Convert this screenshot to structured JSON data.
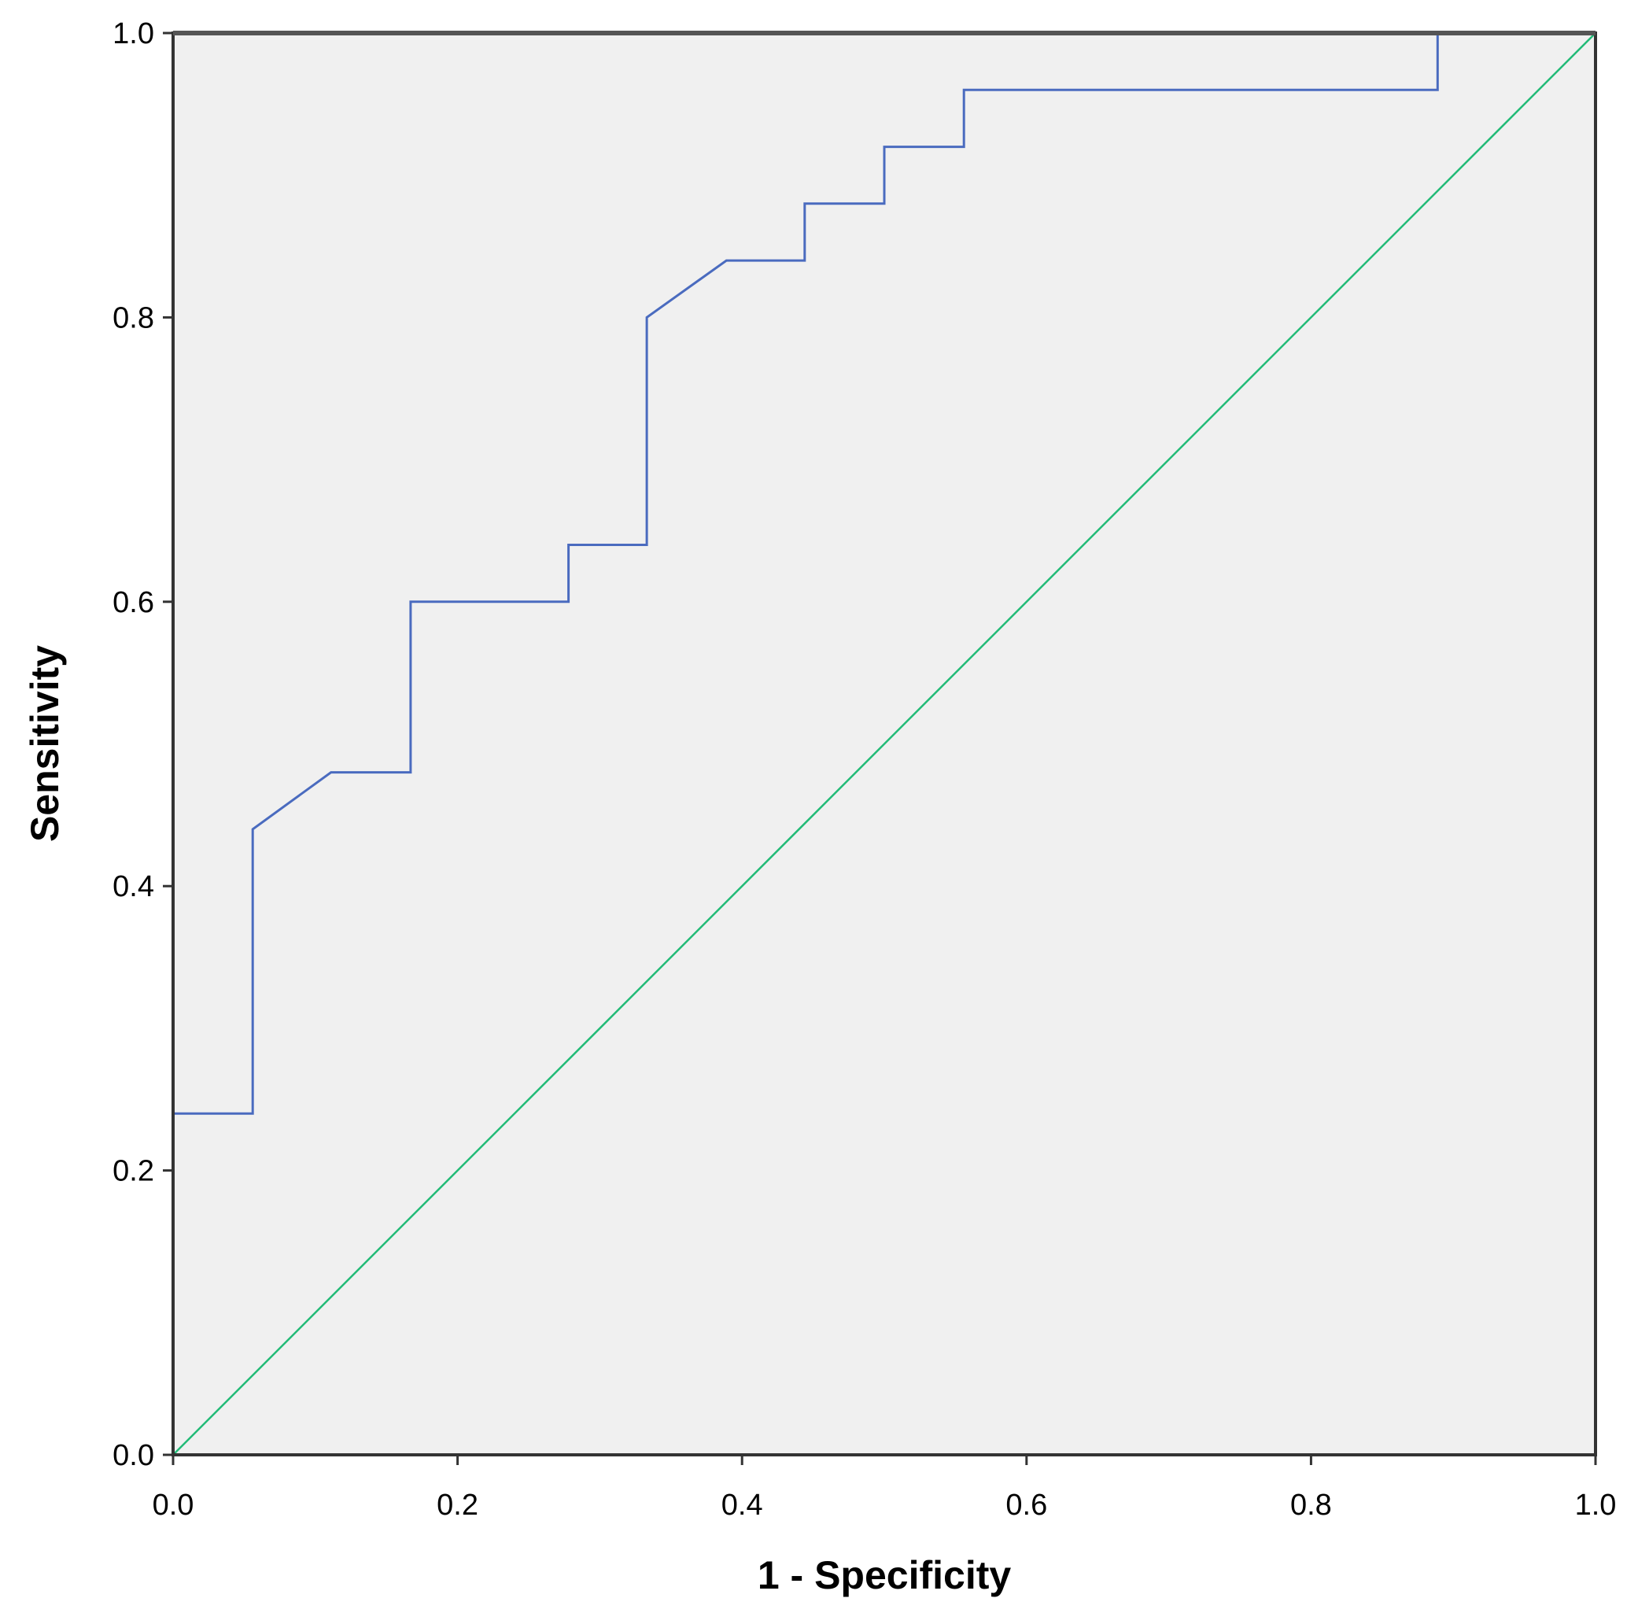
{
  "chart_data": {
    "type": "line",
    "title": "",
    "xlabel": "1 - Specificity",
    "ylabel": "Sensitivity",
    "xlim": [
      0,
      1
    ],
    "ylim": [
      0,
      1
    ],
    "x_ticks": [
      "0.0",
      "0.2",
      "0.4",
      "0.6",
      "0.8",
      "1.0"
    ],
    "y_ticks": [
      "0.0",
      "0.2",
      "0.4",
      "0.6",
      "0.8",
      "1.0"
    ],
    "grid": false,
    "legend": "none",
    "background_color": "#f0f0f0",
    "series": [
      {
        "color": "#4a6bbf",
        "x": [
          0.0,
          0.0,
          0.056,
          0.056,
          0.111,
          0.167,
          0.167,
          0.278,
          0.278,
          0.333,
          0.333,
          0.389,
          0.444,
          0.444,
          0.5,
          0.5,
          0.556,
          0.556,
          0.889,
          0.889,
          1.0
        ],
        "y": [
          0.0,
          0.24,
          0.24,
          0.44,
          0.48,
          0.48,
          0.6,
          0.6,
          0.64,
          0.64,
          0.8,
          0.84,
          0.84,
          0.88,
          0.88,
          0.92,
          0.92,
          0.96,
          0.96,
          1.0,
          1.0
        ]
      },
      {
        "color": "#22bb77",
        "x": [
          0,
          1
        ],
        "y": [
          0,
          1
        ]
      }
    ]
  }
}
